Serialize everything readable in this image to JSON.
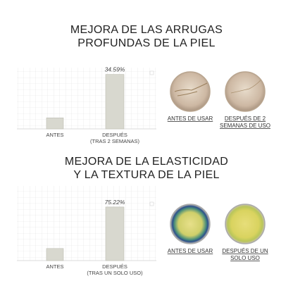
{
  "chart_data": [
    {
      "type": "bar",
      "title": "MEJORA DE LAS ARRUGAS\nPROFUNDAS DE LA PIEL",
      "categories": [
        "ANTES",
        "DESPUÉS\n(TRAS 2 SEMANAS)"
      ],
      "values": [
        7,
        34.59
      ],
      "value_labels": [
        null,
        "34.59%"
      ],
      "color": "#d8d8cf",
      "ylim": [
        0,
        38
      ],
      "grid": true,
      "annotations": [
        "ANTES DE USAR",
        "DESPUÉS DE 2\nSEMANAS DE USO"
      ]
    },
    {
      "type": "bar",
      "title": "MEJORA DE LA ELASTICIDAD\nY LA TEXTURA DE LA PIEL",
      "categories": [
        "ANTES",
        "DESPUÉS\n(TRAS UN SOLO USO)"
      ],
      "values": [
        17,
        75.22
      ],
      "value_labels": [
        null,
        "75.22%"
      ],
      "color": "#d8d8cf",
      "ylim": [
        0,
        84
      ],
      "grid": true,
      "annotations": [
        "ANTES DE USAR",
        "DESPUÉS DE UN\nSOLO USO"
      ]
    }
  ]
}
